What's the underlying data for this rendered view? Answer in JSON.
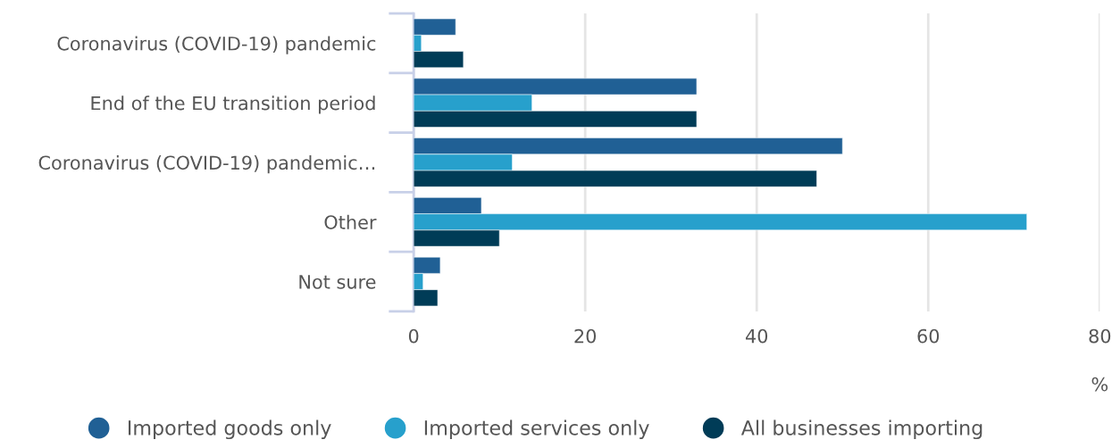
{
  "chart_data": {
    "type": "bar",
    "orientation": "horizontal",
    "xlabel": "%",
    "categories": [
      "Coronavirus (COVID-19) pandemic",
      "End of the EU transition period",
      "Coronavirus (COVID-19) pandemic…",
      "Other",
      "Not sure"
    ],
    "series": [
      {
        "name": "Imported goods only",
        "color": "#206095",
        "values": [
          4.9,
          33.0,
          50.0,
          7.9,
          3.1
        ]
      },
      {
        "name": "Imported services only",
        "color": "#27a0cc",
        "values": [
          0.9,
          13.8,
          11.5,
          71.5,
          1.1
        ]
      },
      {
        "name": "All businesses importing",
        "color": "#003c57",
        "values": [
          5.8,
          33.0,
          47.0,
          10.0,
          2.8
        ]
      }
    ],
    "xlim": [
      0,
      80
    ],
    "xticks": [
      0,
      20,
      40,
      60,
      80
    ],
    "grid": "x",
    "legend": "bottom"
  }
}
